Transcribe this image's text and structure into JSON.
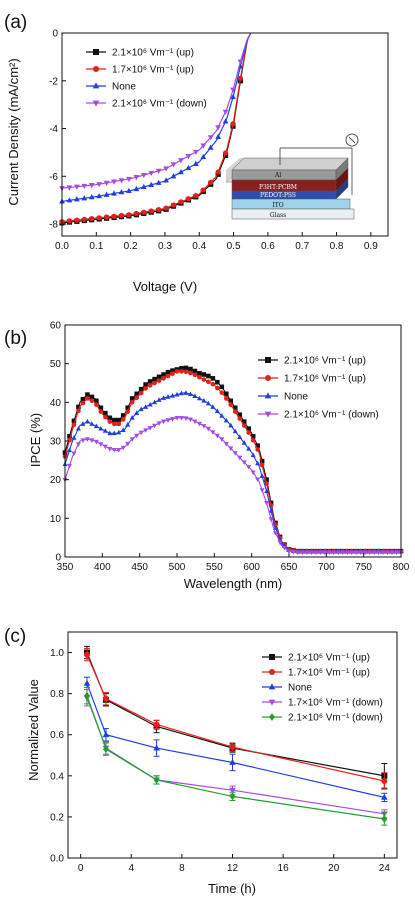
{
  "colors": {
    "black": "#111111",
    "red": "#e0221b",
    "blue": "#1f3fe0",
    "magenta": "#a64be6",
    "green": "#22a02a",
    "device_layer_gray": "#c8c8c8",
    "device_layer_active": "#8a1f1f",
    "device_layer_pedot": "#2e4fb0",
    "device_layer_ito": "#9fd3ec",
    "device_layer_glass": "#e8eef2"
  },
  "chart_data": [
    {
      "panel": "(a)",
      "type": "line",
      "xlabel": "Voltage (V)",
      "ylabel": "Current Density (mA/cm²)",
      "xlim": [
        0,
        0.95
      ],
      "ylim": [
        -8.5,
        0
      ],
      "xticks": [
        "0.0",
        "0.1",
        "0.2",
        "0.3",
        "0.4",
        "0.5",
        "0.6",
        "0.7",
        "0.8",
        "0.9"
      ],
      "yticks": [
        "0",
        "-2",
        "-4",
        "-6",
        "-8"
      ],
      "legend": "top-left",
      "series": [
        {
          "name": "2.1×10⁶ Vm⁻¹ (up)",
          "marker": "square",
          "color": "#111111",
          "x": [
            0,
            0.1,
            0.2,
            0.3,
            0.4,
            0.45,
            0.48,
            0.5,
            0.52,
            0.54,
            0.55
          ],
          "y": [
            -7.95,
            -7.8,
            -7.65,
            -7.4,
            -6.8,
            -6.1,
            -5.0,
            -3.8,
            -2.0,
            -0.3,
            0
          ]
        },
        {
          "name": "1.7×10⁶ Vm⁻¹ (up)",
          "marker": "circle",
          "color": "#e0221b",
          "x": [
            0,
            0.1,
            0.2,
            0.3,
            0.4,
            0.45,
            0.48,
            0.5,
            0.52,
            0.54,
            0.55
          ],
          "y": [
            -7.9,
            -7.75,
            -7.6,
            -7.35,
            -6.75,
            -6.0,
            -4.9,
            -3.7,
            -1.9,
            -0.3,
            0
          ]
        },
        {
          "name": "None",
          "marker": "triangle-up",
          "color": "#1f3fe0",
          "x": [
            0,
            0.1,
            0.2,
            0.3,
            0.4,
            0.45,
            0.48,
            0.5,
            0.52,
            0.54,
            0.55
          ],
          "y": [
            -7.05,
            -6.85,
            -6.6,
            -6.2,
            -5.4,
            -4.5,
            -3.6,
            -2.6,
            -1.4,
            -0.3,
            0
          ]
        },
        {
          "name": "2.1×10⁶ Vm⁻¹ (down)",
          "marker": "triangle-down",
          "color": "#a64be6",
          "x": [
            0,
            0.1,
            0.2,
            0.3,
            0.4,
            0.45,
            0.48,
            0.5,
            0.52,
            0.54,
            0.55
          ],
          "y": [
            -6.5,
            -6.35,
            -6.1,
            -5.7,
            -4.9,
            -4.1,
            -3.2,
            -2.3,
            -1.2,
            -0.25,
            0
          ]
        }
      ],
      "inset": {
        "layers": [
          "Al",
          "P3HT:PCBM",
          "PEDOT:PSS",
          "ITO",
          "Glass"
        ]
      }
    },
    {
      "panel": "(b)",
      "type": "line",
      "xlabel": "Wavelength (nm)",
      "ylabel": "IPCE (%)",
      "xlim": [
        350,
        800
      ],
      "ylim": [
        0,
        60
      ],
      "xticks": [
        "350",
        "400",
        "450",
        "500",
        "550",
        "600",
        "650",
        "700",
        "750",
        "800"
      ],
      "yticks": [
        "0",
        "10",
        "20",
        "30",
        "40",
        "50",
        "60"
      ],
      "legend": "top-right",
      "x": [
        350,
        360,
        370,
        380,
        390,
        400,
        410,
        420,
        430,
        440,
        450,
        460,
        470,
        480,
        490,
        500,
        510,
        520,
        530,
        540,
        550,
        560,
        570,
        580,
        590,
        600,
        610,
        620,
        630,
        640,
        650,
        660,
        680,
        700,
        750,
        800
      ],
      "series": [
        {
          "name": "2.1×10⁶ Vm⁻¹ (up)",
          "marker": "square",
          "color": "#111111",
          "values": [
            27,
            34,
            40,
            42,
            41,
            38,
            36,
            35,
            37,
            41,
            43,
            45,
            46,
            47,
            48,
            48.5,
            49,
            48.5,
            47.5,
            47,
            46,
            44,
            41,
            38,
            35,
            32,
            28,
            20,
            10,
            4,
            2,
            1.5,
            1.5,
            1.5,
            1.5,
            1.5
          ]
        },
        {
          "name": "1.7×10⁶ Vm⁻¹ (up)",
          "marker": "circle",
          "color": "#e0221b",
          "values": [
            26,
            33,
            39,
            41,
            40,
            37,
            35,
            34,
            36,
            40,
            42,
            44,
            45,
            46,
            47,
            48,
            48,
            47.5,
            46.5,
            45.5,
            44.5,
            42.5,
            40,
            37,
            34,
            31,
            27,
            19,
            9.5,
            3.8,
            2,
            1.5,
            1.5,
            1.5,
            1.5,
            1.5
          ]
        },
        {
          "name": "None",
          "marker": "triangle-up",
          "color": "#1f3fe0",
          "values": [
            24,
            30,
            34,
            35,
            34,
            33,
            32,
            32,
            33,
            36,
            38,
            39,
            40,
            41,
            41.5,
            42,
            42.5,
            42,
            41,
            40,
            38.5,
            36.5,
            34.5,
            32,
            29.5,
            27,
            23.5,
            17,
            8.5,
            3.5,
            1.8,
            1.5,
            1.5,
            1.5,
            1.5,
            1.5
          ]
        },
        {
          "name": "2.1×10⁶ Vm⁻¹ (down)",
          "marker": "triangle-down",
          "color": "#a64be6",
          "values": [
            20,
            26,
            30,
            30.5,
            30,
            29,
            28,
            27.5,
            28.5,
            30.5,
            32,
            33,
            34,
            35,
            35.5,
            36,
            36,
            35.5,
            34.5,
            33.5,
            32,
            30.5,
            28.5,
            26.5,
            24.5,
            22.5,
            19.5,
            14,
            7,
            3,
            1.5,
            1.2,
            1.2,
            1.2,
            1.2,
            1.2
          ]
        }
      ]
    },
    {
      "panel": "(c)",
      "type": "line",
      "xlabel": "Time (h)",
      "ylabel": "Normalized Value",
      "xlim": [
        -1,
        25
      ],
      "ylim": [
        0,
        1.1
      ],
      "xticks": [
        "0",
        "4",
        "8",
        "12",
        "16",
        "20",
        "24"
      ],
      "yticks": [
        "0.0",
        "0.2",
        "0.4",
        "0.6",
        "0.8",
        "1.0"
      ],
      "legend": "top-right",
      "x": [
        0.5,
        2,
        6,
        12,
        24
      ],
      "series": [
        {
          "name": "2.1×10⁶ Vm⁻¹ (up)",
          "marker": "square",
          "color": "#111111",
          "values": [
            1.0,
            0.77,
            0.64,
            0.535,
            0.4
          ],
          "err": [
            0.03,
            0.03,
            0.03,
            0.02,
            0.06
          ]
        },
        {
          "name": "1.7×10⁶ Vm⁻¹ (up)",
          "marker": "circle",
          "color": "#e0221b",
          "values": [
            0.99,
            0.775,
            0.65,
            0.54,
            0.375
          ],
          "err": [
            0.03,
            0.03,
            0.02,
            0.02,
            0.04
          ]
        },
        {
          "name": "None",
          "marker": "triangle-up",
          "color": "#1f3fe0",
          "values": [
            0.85,
            0.6,
            0.535,
            0.465,
            0.295
          ],
          "err": [
            0.03,
            0.03,
            0.04,
            0.04,
            0.02
          ]
        },
        {
          "name": "1.7×10⁶ Vm⁻¹ (down)",
          "marker": "triangle-down",
          "color": "#a64be6",
          "values": [
            0.78,
            0.535,
            0.38,
            0.33,
            0.215
          ],
          "err": [
            0.04,
            0.03,
            0.02,
            0.02,
            0.02
          ]
        },
        {
          "name": "2.1×10⁶ Vm⁻¹ (down)",
          "marker": "diamond",
          "color": "#22a02a",
          "values": [
            0.79,
            0.53,
            0.38,
            0.3,
            0.19
          ],
          "err": [
            0.04,
            0.03,
            0.02,
            0.02,
            0.03
          ]
        }
      ]
    }
  ]
}
